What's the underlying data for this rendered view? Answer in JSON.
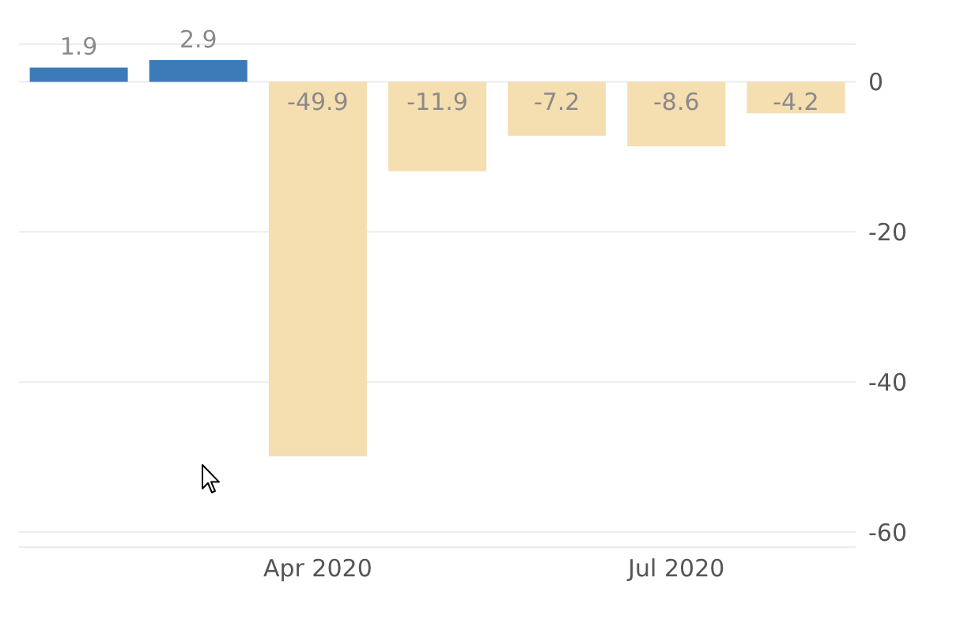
{
  "chart_data": {
    "type": "bar",
    "categories": [
      null,
      null,
      "Apr 2020",
      null,
      null,
      "Jul 2020",
      null
    ],
    "values": [
      1.9,
      2.9,
      -49.9,
      -11.9,
      -7.2,
      -8.6,
      -4.2
    ],
    "colors": [
      "#3d7ab8",
      "#3d7ab8",
      "#f5deb0",
      "#f5deb0",
      "#f5deb0",
      "#f5deb0",
      "#f5deb0"
    ],
    "ylim": [
      -62,
      5
    ],
    "yticks": [
      0,
      -20,
      -40,
      -60
    ],
    "grid": "y",
    "data_labels": true
  }
}
